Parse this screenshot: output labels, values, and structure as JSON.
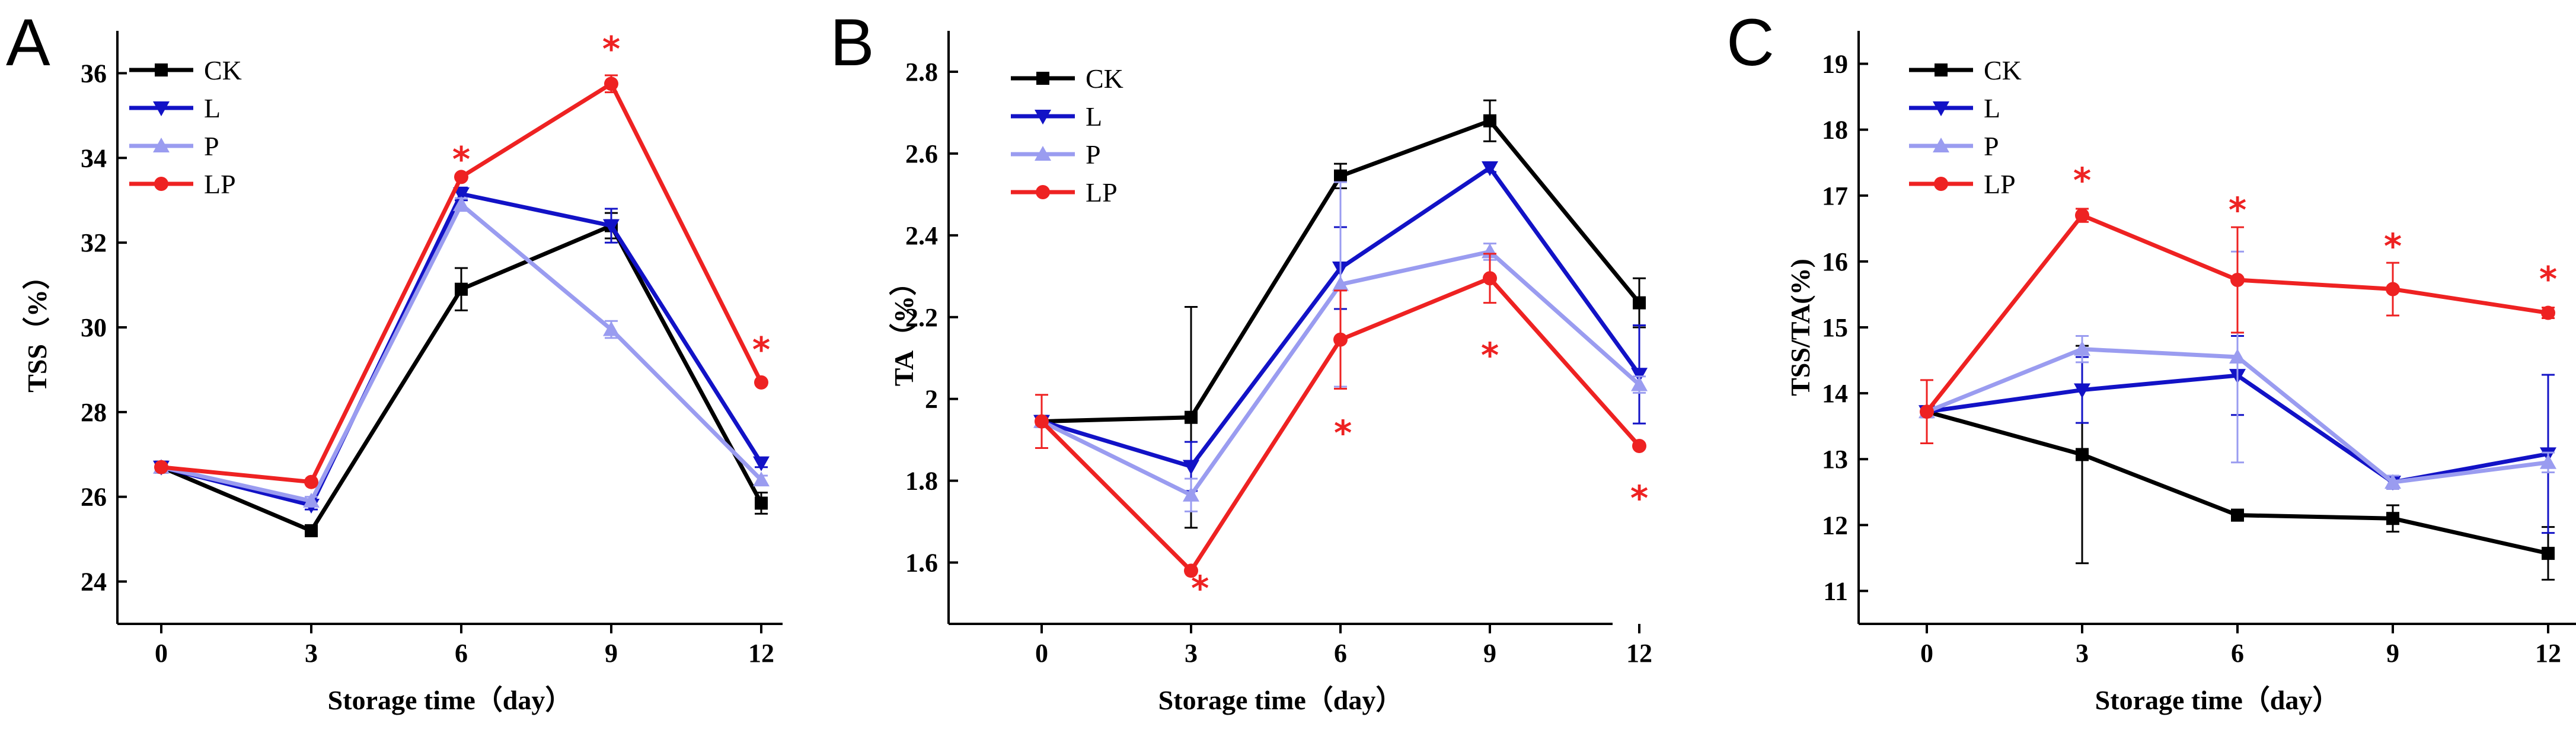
{
  "colors": {
    "CK": "#000000",
    "L": "#1212c6",
    "P": "#9a9cf0",
    "LP": "#ee2222"
  },
  "chart_data": [
    {
      "panel": "A",
      "type": "line",
      "xlabel": "Storage time（day）",
      "ylabel": "TSS（%）",
      "x": [
        0,
        3,
        6,
        9,
        12
      ],
      "xticks": [
        "0",
        "3",
        "6",
        "9",
        "12"
      ],
      "ylim": [
        23,
        37
      ],
      "yticks": [
        24,
        26,
        28,
        30,
        32,
        34,
        36
      ],
      "legend": [
        "CK",
        "L",
        "P",
        "LP"
      ],
      "legend_position": "top-left",
      "series": [
        {
          "name": "CK",
          "marker": "square",
          "values": [
            26.7,
            25.2,
            30.9,
            32.4,
            25.85
          ],
          "errors": [
            0,
            0.1,
            0.5,
            0.3,
            0.25
          ]
        },
        {
          "name": "L",
          "marker": "triangle-down",
          "values": [
            26.7,
            25.8,
            33.15,
            32.4,
            26.8
          ],
          "errors": [
            0,
            0.1,
            0.15,
            0.4,
            0.1
          ]
        },
        {
          "name": "P",
          "marker": "triangle-up",
          "values": [
            26.7,
            25.9,
            32.9,
            29.95,
            26.4
          ],
          "errors": [
            0,
            0.1,
            0.15,
            0.2,
            0.1
          ]
        },
        {
          "name": "LP",
          "marker": "circle",
          "values": [
            26.7,
            26.35,
            33.55,
            35.75,
            28.7
          ],
          "errors": [
            0,
            0.05,
            0.05,
            0.2,
            0.05
          ]
        }
      ],
      "annotations": [
        {
          "text": "*",
          "x": 6,
          "y": 34.0
        },
        {
          "text": "*",
          "x": 9,
          "y": 36.6
        },
        {
          "text": "*",
          "x": 12,
          "y": 29.5
        }
      ]
    },
    {
      "panel": "B",
      "type": "line",
      "xlabel": "Storage time（day）",
      "ylabel": "TA（%）",
      "x": [
        0,
        3,
        6,
        9,
        12
      ],
      "xticks": [
        "0",
        "3",
        "6",
        "9",
        "12"
      ],
      "ylim": [
        1.45,
        2.9
      ],
      "yticks": [
        1.6,
        1.8,
        2.0,
        2.2,
        2.4,
        2.6,
        2.8
      ],
      "legend": [
        "CK",
        "L",
        "P",
        "LP"
      ],
      "legend_position": "top-left",
      "series": [
        {
          "name": "CK",
          "marker": "square",
          "values": [
            1.945,
            1.955,
            2.545,
            2.68,
            2.235
          ],
          "errors": [
            0,
            0.27,
            0.03,
            0.05,
            0.06
          ]
        },
        {
          "name": "L",
          "marker": "triangle-down",
          "values": [
            1.945,
            1.835,
            2.32,
            2.565,
            2.06
          ],
          "errors": [
            0,
            0.06,
            0.1,
            0.01,
            0.12
          ]
        },
        {
          "name": "P",
          "marker": "triangle-up",
          "values": [
            1.945,
            1.765,
            2.28,
            2.36,
            2.035
          ],
          "errors": [
            0,
            0.04,
            0.25,
            0.02,
            0.02
          ]
        },
        {
          "name": "LP",
          "marker": "circle",
          "values": [
            1.945,
            1.58,
            2.145,
            2.295,
            1.885
          ],
          "errors": [
            0.065,
            0,
            0.12,
            0.06,
            0
          ]
        }
      ],
      "annotations": [
        {
          "text": "*",
          "x": 3,
          "y": 1.54,
          "dx": 0.18
        },
        {
          "text": "*",
          "x": 6,
          "y": 1.92,
          "dx": 0.05
        },
        {
          "text": "*",
          "x": 9,
          "y": 2.11
        },
        {
          "text": "*",
          "x": 12,
          "y": 1.76
        }
      ]
    },
    {
      "panel": "C",
      "type": "line",
      "xlabel": "Storage time（day）",
      "ylabel": "TSS/TA(%)",
      "x": [
        0,
        3,
        6,
        9,
        12
      ],
      "xticks": [
        "0",
        "3",
        "6",
        "9",
        "12"
      ],
      "ylim": [
        10.5,
        19.5
      ],
      "yticks": [
        11,
        12,
        13,
        14,
        15,
        16,
        17,
        18,
        19
      ],
      "legend": [
        "CK",
        "L",
        "P",
        "LP"
      ],
      "legend_position": "top-left",
      "series": [
        {
          "name": "CK",
          "marker": "square",
          "values": [
            13.72,
            13.07,
            12.15,
            12.1,
            11.57
          ],
          "errors": [
            0,
            1.65,
            0.08,
            0.2,
            0.4
          ]
        },
        {
          "name": "L",
          "marker": "triangle-down",
          "values": [
            13.72,
            14.05,
            14.27,
            12.65,
            13.08
          ],
          "errors": [
            0,
            0.5,
            0.6,
            0.1,
            1.2
          ]
        },
        {
          "name": "P",
          "marker": "triangle-up",
          "values": [
            13.72,
            14.67,
            14.55,
            12.65,
            12.95
          ],
          "errors": [
            0,
            0.2,
            1.6,
            0.1,
            0.15
          ]
        },
        {
          "name": "LP",
          "marker": "circle",
          "values": [
            13.72,
            16.7,
            15.72,
            15.58,
            15.22
          ],
          "errors": [
            0.48,
            0.1,
            0.8,
            0.4,
            0.08
          ]
        }
      ],
      "annotations": [
        {
          "text": "*",
          "x": 3,
          "y": 17.25
        },
        {
          "text": "*",
          "x": 6,
          "y": 16.8
        },
        {
          "text": "*",
          "x": 9,
          "y": 16.25
        },
        {
          "text": "*",
          "x": 12,
          "y": 15.75
        }
      ]
    }
  ]
}
